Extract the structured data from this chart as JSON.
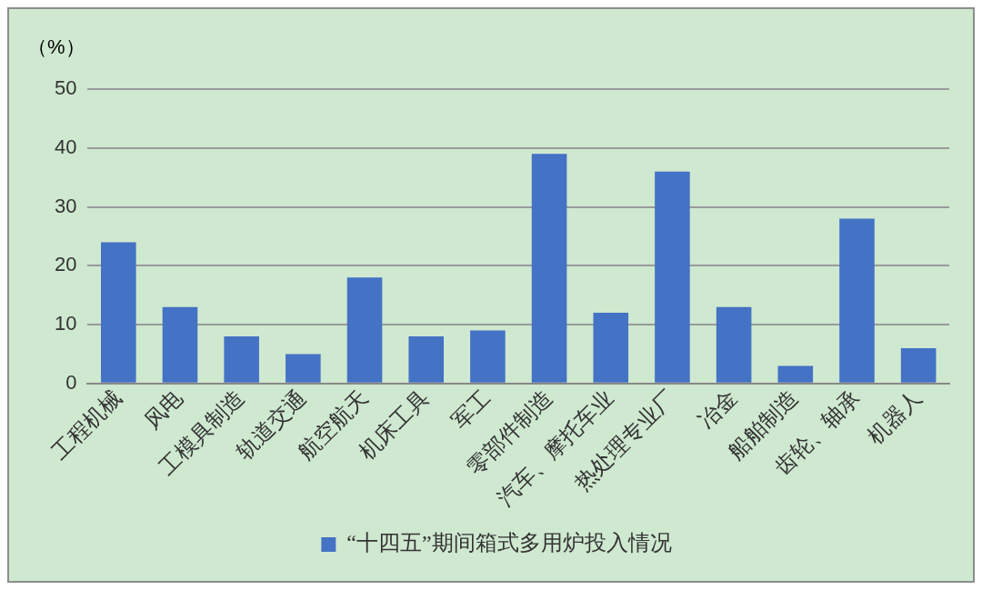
{
  "chart_data": {
    "type": "bar",
    "ylabel": "（%）",
    "categories": [
      "工程机械",
      "风电",
      "工模具制造",
      "轨道交通",
      "航空航天",
      "机床工具",
      "军工",
      "零部件制造",
      "汽车、摩托车业",
      "热处理专业厂",
      "冶金",
      "船舶制造",
      "齿轮、轴承",
      "机器人"
    ],
    "series": [
      {
        "name": "“十四五”期间箱式多用炉投入情况",
        "color": "#4472c4",
        "values": [
          24,
          13,
          8,
          5,
          18,
          8,
          9,
          39,
          12,
          36,
          13,
          3,
          28,
          6
        ]
      }
    ],
    "ylim": [
      0,
      50
    ],
    "yticks": [
      0,
      10,
      20,
      30,
      40,
      50
    ],
    "grid": "y",
    "legend": "bottom"
  }
}
